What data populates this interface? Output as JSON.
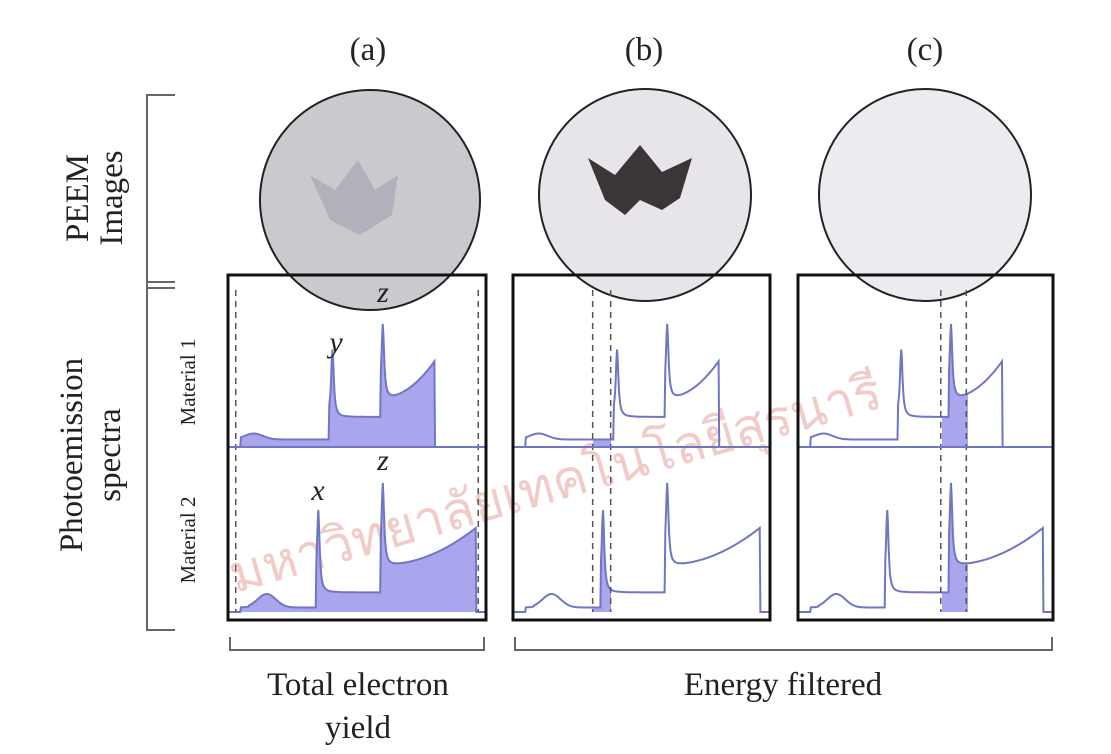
{
  "panels": [
    {
      "label": "(a)"
    },
    {
      "label": "(b)"
    },
    {
      "label": "(c)"
    }
  ],
  "row_labels": {
    "images": [
      "PEEM",
      "Images"
    ],
    "spectra": [
      "Photoemission",
      "spectra"
    ]
  },
  "materials": [
    "Material 1",
    "Material 2"
  ],
  "peak_labels": {
    "material_1": [
      "y",
      "z"
    ],
    "material_2": [
      "x",
      "z"
    ]
  },
  "groups": {
    "total": [
      "Total electron",
      "yield"
    ],
    "filtered": "Energy filtered"
  },
  "watermark": "มหาวิทยาลัยเทคโนโลยีสุรนารี"
}
